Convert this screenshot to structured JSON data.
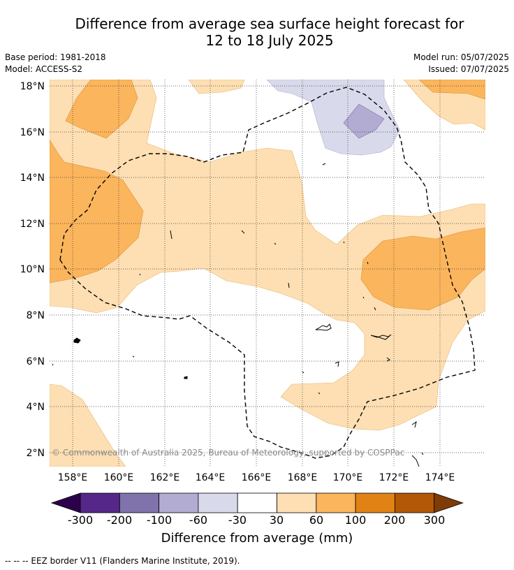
{
  "title_line1": "Difference from average sea surface height forecast for",
  "title_line2": "12 to 18 July 2025",
  "meta_left": {
    "base_period": "Base period: 1981-2018",
    "model": "Model: ACCESS-S2"
  },
  "meta_right": {
    "model_run": "Model run: 05/07/2025",
    "issued": "Issued: 07/07/2025"
  },
  "map": {
    "lat_ticks": [
      "18°N",
      "16°N",
      "14°N",
      "12°N",
      "10°N",
      "8°N",
      "6°N",
      "4°N",
      "2°N"
    ],
    "lon_ticks": [
      "158°E",
      "160°E",
      "162°E",
      "164°E",
      "166°E",
      "168°E",
      "170°E",
      "172°E",
      "174°E"
    ],
    "copyright": "© Commonwealth of Australia 2025, Bureau of Meteorology, supported by COSPPac"
  },
  "colorbar": {
    "label": "Difference from average (mm)",
    "ticks": [
      "-300",
      "-200",
      "-100",
      "-60",
      "-30",
      "30",
      "60",
      "100",
      "200",
      "300"
    ],
    "colors": {
      "lt300": "#2d004b",
      "b300_200": "#542788",
      "b200_100": "#8073ac",
      "b100_60": "#b2abd2",
      "b60_30": "#d8daeb",
      "b30_30": "#ffffff",
      "b30_60": "#fddfb3",
      "b60_100": "#fbb55c",
      "b100_200": "#e08214",
      "b200_300": "#b35806",
      "gt300": "#7f3b08"
    }
  },
  "footnote": "--  --  -- EEZ border V11 (Flanders Marine Institute, 2019)."
}
